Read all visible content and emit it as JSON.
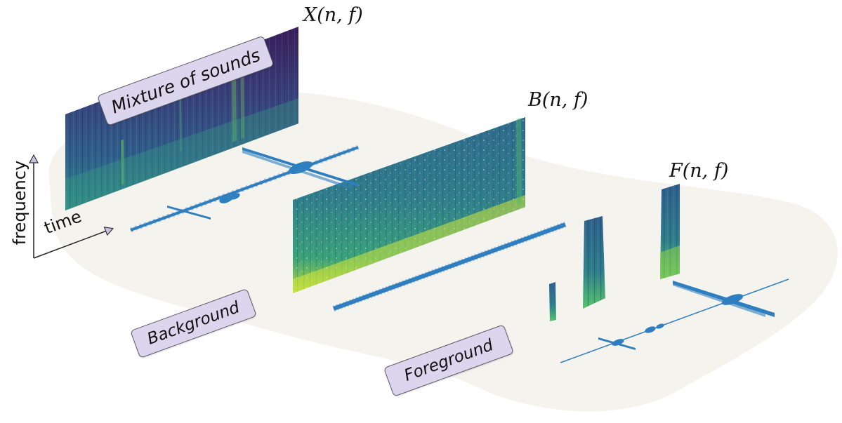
{
  "labels": {
    "mixture": "Mixture of sounds",
    "background": "Background",
    "foreground": "Foreground"
  },
  "math": {
    "mixture": "X(n, f)",
    "background": "B(n, f)",
    "foreground": "F(n, f)"
  },
  "axes": {
    "frequency": "frequency",
    "time": "time"
  },
  "colors": {
    "blob": "#f5f3ee",
    "waveform": "#2f7fc0",
    "label_fill": "#dcd5ee",
    "label_border": "#5b5b66",
    "viridis_dark": "#3d1c5c",
    "viridis_mid": "#2d6f8e",
    "viridis_green": "#3fa36f",
    "viridis_yellow": "#c8e03a"
  }
}
